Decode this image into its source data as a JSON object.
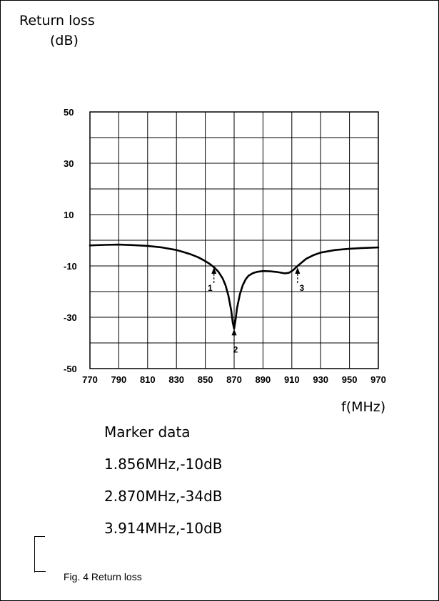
{
  "chart_data": {
    "type": "line",
    "title": "",
    "ylabel_line1": "Return loss",
    "ylabel_line2": "(dB)",
    "xlabel": "f(MHz)",
    "xlim": [
      770,
      970
    ],
    "ylim": [
      -50,
      50
    ],
    "x_ticks": [
      "770",
      "790",
      "810",
      "830",
      "850",
      "870",
      "890",
      "910",
      "930",
      "950",
      "970"
    ],
    "y_tick_labels": [
      {
        "value": 50,
        "label": "50"
      },
      {
        "value": 30,
        "label": "30"
      },
      {
        "value": 10,
        "label": "10"
      },
      {
        "value": -10,
        "label": "-10"
      },
      {
        "value": -30,
        "label": "-30"
      },
      {
        "value": -50,
        "label": "-50"
      }
    ],
    "grid": true,
    "series": [
      {
        "x": [
          770,
          780,
          790,
          800,
          810,
          820,
          830,
          835,
          840,
          845,
          850,
          853,
          856,
          859,
          862,
          864,
          866,
          868,
          869,
          870,
          871,
          872,
          874,
          876,
          878,
          880,
          883,
          886,
          890,
          895,
          900,
          905,
          908,
          911,
          914,
          917,
          920,
          925,
          930,
          940,
          950,
          960,
          970
        ],
        "y": [
          -2,
          -1.8,
          -1.7,
          -1.9,
          -2.2,
          -2.8,
          -3.8,
          -4.6,
          -5.5,
          -6.6,
          -8.1,
          -9.2,
          -10.5,
          -12.2,
          -14.8,
          -17.5,
          -21.5,
          -27.5,
          -32,
          -34.5,
          -31,
          -26.5,
          -21,
          -17.5,
          -15.2,
          -13.8,
          -12.8,
          -12.3,
          -12,
          -12.1,
          -12.4,
          -12.9,
          -12.7,
          -11.6,
          -10,
          -8.6,
          -7.2,
          -5.8,
          -4.8,
          -3.8,
          -3.3,
          -3,
          -2.8
        ]
      }
    ],
    "markers": [
      {
        "label": "1",
        "x": 856,
        "y": -10
      },
      {
        "label": "2",
        "x": 870,
        "y": -34
      },
      {
        "label": "3",
        "x": 914,
        "y": -10
      }
    ]
  },
  "marker_panel": {
    "heading": "Marker data",
    "lines": [
      "1.856MHz,-10dB",
      "2.870MHz,-34dB",
      "3.914MHz,-10dB"
    ]
  },
  "caption": "Fig. 4  Return loss"
}
